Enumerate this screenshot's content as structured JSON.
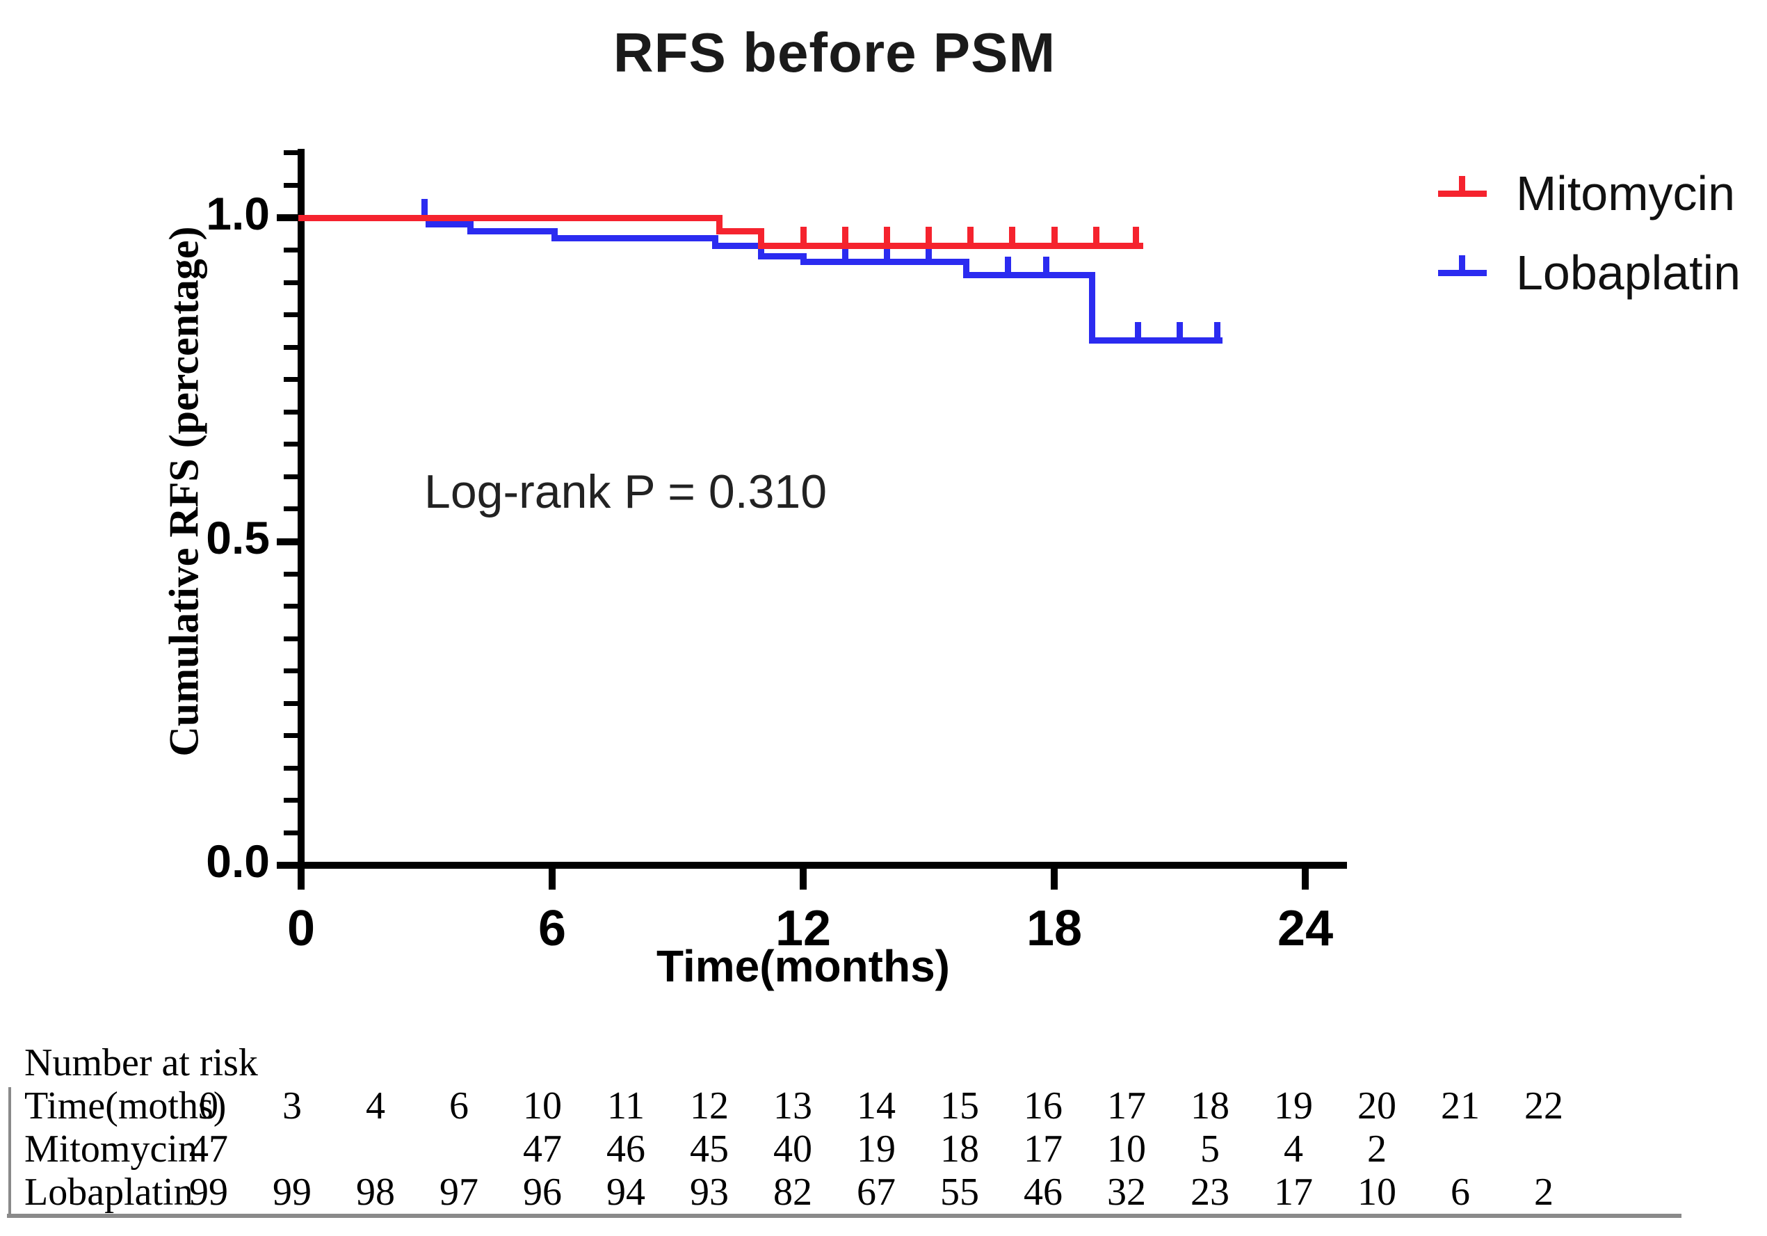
{
  "title": "RFS before PSM",
  "annotation": "Log-rank P = 0.310",
  "axes": {
    "y_label": "Cumulative RFS (percentage)",
    "x_label": "Time(months)"
  },
  "legend": {
    "items": [
      {
        "label": "Mitomycin",
        "color": "#f5232e"
      },
      {
        "label": "Lobaplatin",
        "color": "#2b2bf0"
      }
    ]
  },
  "chart_data": {
    "type": "line",
    "subtype": "kaplan-meier-step-survival",
    "title": "RFS before PSM",
    "xlabel": "Time(months)",
    "ylabel": "Cumulative RFS (percentage)",
    "xlim": [
      0,
      25
    ],
    "ylim": [
      0,
      1.1
    ],
    "x_tick_values": [
      0,
      6,
      12,
      18,
      24
    ],
    "x_tick_labels": [
      "0",
      "6",
      "12",
      "18",
      "24"
    ],
    "y_tick_values": [
      1.0,
      0.5,
      0.0
    ],
    "y_tick_labels": [
      "1.0",
      "0.5",
      "0.0"
    ],
    "y_minor_tick_step": 0.05,
    "grid": false,
    "legend_position": "upper-right-outside",
    "annotation": "Log-rank P = 0.310",
    "series": [
      {
        "name": "Lobaplatin",
        "color": "#2b2bf0",
        "steps": [
          [
            0,
            1.0
          ],
          [
            3.05,
            0.99
          ],
          [
            4.05,
            0.979
          ],
          [
            6.05,
            0.968
          ],
          [
            9.9,
            0.956
          ],
          [
            11.0,
            0.94
          ],
          [
            12.0,
            0.932
          ],
          [
            15.9,
            0.911
          ],
          [
            18.9,
            0.81
          ]
        ],
        "end_time": 21.95,
        "censors": [
          [
            2.95,
            1.0
          ],
          [
            13.0,
            0.932
          ],
          [
            14.0,
            0.932
          ],
          [
            15.0,
            0.932
          ],
          [
            16.9,
            0.911
          ],
          [
            17.8,
            0.911
          ],
          [
            20.0,
            0.81
          ],
          [
            21.0,
            0.81
          ],
          [
            21.9,
            0.81
          ]
        ]
      },
      {
        "name": "Mitomycin",
        "color": "#f5232e",
        "steps": [
          [
            0,
            1.0
          ],
          [
            10.0,
            0.979
          ],
          [
            11.0,
            0.957
          ]
        ],
        "end_time": 20.05,
        "censors": [
          [
            12.0,
            0.957
          ],
          [
            13.0,
            0.957
          ],
          [
            14.0,
            0.957
          ],
          [
            15.0,
            0.957
          ],
          [
            16.0,
            0.957
          ],
          [
            17.0,
            0.957
          ],
          [
            18.0,
            0.957
          ],
          [
            19.0,
            0.957
          ],
          [
            19.95,
            0.957
          ]
        ]
      }
    ]
  },
  "risk_table": {
    "header": "Number at risk",
    "time_row_label": "Time(moths)",
    "times": [
      "0",
      "3",
      "4",
      "6",
      "10",
      "11",
      "12",
      "13",
      "14",
      "15",
      "16",
      "17",
      "18",
      "19",
      "20",
      "21",
      "22"
    ],
    "rows": [
      {
        "label": "Mitomycin",
        "values": [
          "47",
          "",
          "",
          "",
          "47",
          "46",
          "45",
          "40",
          "19",
          "18",
          "17",
          "10",
          "5",
          "4",
          "2",
          "",
          ""
        ]
      },
      {
        "label": "Lobaplatin",
        "values": [
          "99",
          "99",
          "98",
          "97",
          "96",
          "94",
          "93",
          "82",
          "67",
          "55",
          "46",
          "32",
          "23",
          "17",
          "10",
          "6",
          "2"
        ]
      }
    ]
  }
}
